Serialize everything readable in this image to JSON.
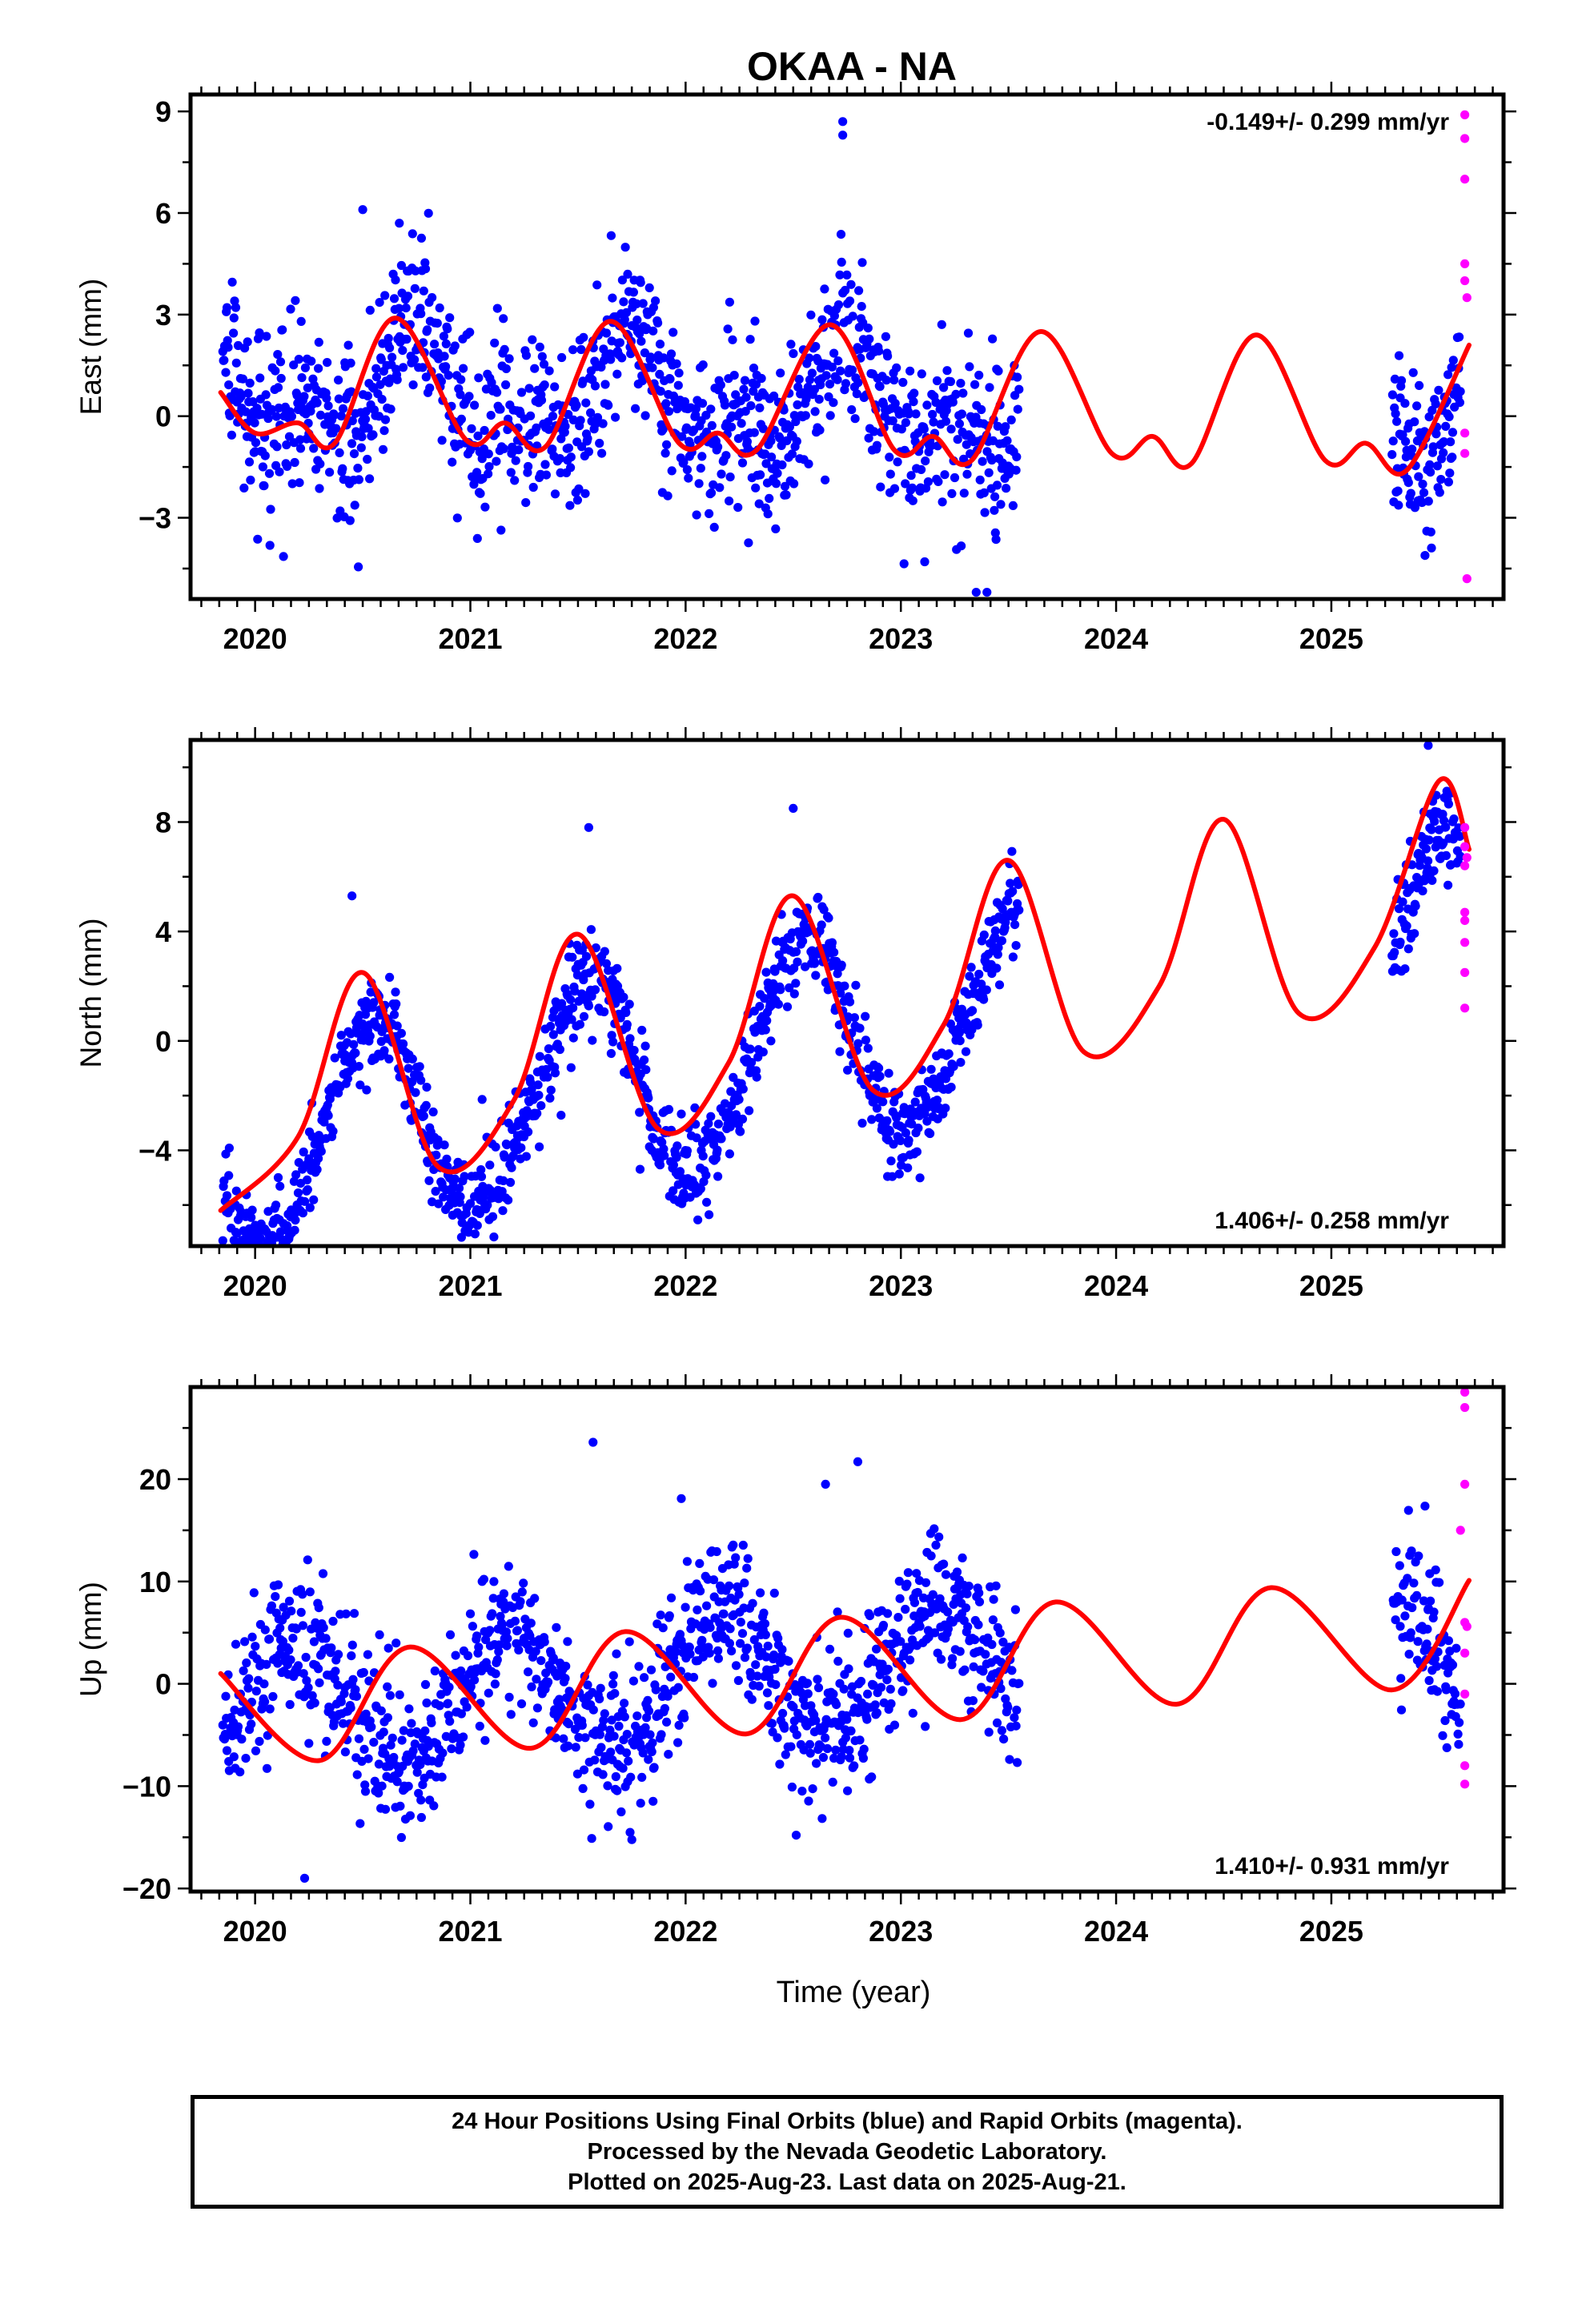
{
  "title": "OKAA - NA",
  "xlabel": "Time (year)",
  "caption": {
    "line1": "24 Hour Positions Using Final Orbits (blue) and Rapid Orbits (magenta).",
    "line2": "Processed by the Nevada Geodetic Laboratory.",
    "line3": "Plotted on 2025-Aug-23. Last data on 2025-Aug-21."
  },
  "colors": {
    "final": "#0000ff",
    "rapid": "#ff00ff",
    "model": "#ff0000",
    "frame": "#000000"
  },
  "chart_data": [
    {
      "type": "scatter",
      "ylabel": "East (mm)",
      "rate": "-0.149+/- 0.299 mm/yr",
      "rate_position": "top-right",
      "xlim": [
        2019.7,
        2025.8
      ],
      "ylim": [
        -5.4,
        9.5
      ],
      "xticks": [
        2020,
        2021,
        2022,
        2023,
        2024,
        2025
      ],
      "yticks": [
        -3,
        0,
        3,
        6,
        9
      ],
      "yticklabels": [
        "−3",
        "0",
        "3",
        "6",
        "9"
      ],
      "trend": {
        "intercept": 0.8,
        "slope": -0.149
      },
      "seasonal": {
        "annual_cos": 0.0,
        "annual_sin": -1.3,
        "semi_cos": -0.9,
        "semi_sin": 0.2
      },
      "noise_sd": 1.2,
      "model_segments": [
        [
          2019.85,
          2023.53
        ],
        [
          2023.53,
          2025.35
        ],
        [
          2025.35,
          2025.64
        ]
      ],
      "final_gaps": [
        [
          2023.55,
          2025.28
        ]
      ],
      "model_points": [
        [
          2019.84,
          0.7
        ],
        [
          2020.0,
          -0.5
        ],
        [
          2020.2,
          -0.2
        ],
        [
          2020.37,
          -0.8
        ],
        [
          2020.65,
          2.9
        ],
        [
          2020.98,
          -0.7
        ],
        [
          2021.16,
          -0.2
        ],
        [
          2021.35,
          -0.9
        ],
        [
          2021.65,
          2.8
        ],
        [
          2021.97,
          -0.8
        ],
        [
          2022.15,
          -0.5
        ],
        [
          2022.33,
          -1.0
        ],
        [
          2022.67,
          2.7
        ],
        [
          2022.97,
          -1.0
        ],
        [
          2023.15,
          -0.6
        ],
        [
          2023.33,
          -1.3
        ],
        [
          2023.65,
          2.5
        ],
        [
          2023.98,
          -1.1
        ],
        [
          2024.17,
          -0.6
        ],
        [
          2024.35,
          -1.4
        ],
        [
          2024.65,
          2.4
        ],
        [
          2024.97,
          -1.3
        ],
        [
          2025.16,
          -0.8
        ],
        [
          2025.35,
          -1.6
        ],
        [
          2025.64,
          2.1
        ]
      ],
      "rapid_points": [
        [
          2025.62,
          8.9
        ],
        [
          2025.62,
          8.2
        ],
        [
          2025.62,
          7.0
        ],
        [
          2025.62,
          4.5
        ],
        [
          2025.62,
          4.0
        ],
        [
          2025.63,
          3.5
        ],
        [
          2025.62,
          -0.5
        ],
        [
          2025.62,
          -1.1
        ],
        [
          2025.63,
          -4.8
        ]
      ],
      "outliers": [
        [
          2020.5,
          6.1
        ],
        [
          2020.67,
          5.7
        ],
        [
          2022.73,
          8.7
        ],
        [
          2022.73,
          8.3
        ],
        [
          2023.35,
          -5.2
        ],
        [
          2023.4,
          -5.2
        ]
      ]
    },
    {
      "type": "scatter",
      "ylabel": "North (mm)",
      "rate": "1.406+/- 0.258 mm/yr",
      "rate_position": "bottom-right",
      "xlim": [
        2019.7,
        2025.8
      ],
      "ylim": [
        -7.5,
        11.0
      ],
      "xticks": [
        2020,
        2021,
        2022,
        2023,
        2024,
        2025
      ],
      "yticks": [
        -4,
        0,
        4,
        8
      ],
      "yticklabels": [
        "−4",
        "0",
        "4",
        "8"
      ],
      "trend": {
        "intercept": -4.3,
        "slope": 1.406
      },
      "seasonal": {
        "annual_cos": -3.7,
        "annual_sin": -1.0,
        "semi_cos": 0.0,
        "semi_sin": 0.3
      },
      "noise_sd": 0.85,
      "model_segments": [
        [
          2019.85,
          2023.53
        ],
        [
          2023.53,
          2025.35
        ],
        [
          2025.35,
          2025.64
        ]
      ],
      "final_gaps": [
        [
          2023.55,
          2025.28
        ]
      ],
      "model_points": [
        [
          2019.84,
          -6.2
        ],
        [
          2020.2,
          -3.5
        ],
        [
          2020.5,
          2.5
        ],
        [
          2020.85,
          -4.6
        ],
        [
          2021.2,
          -2.2
        ],
        [
          2021.5,
          3.9
        ],
        [
          2021.87,
          -3.2
        ],
        [
          2022.2,
          -0.8
        ],
        [
          2022.5,
          5.3
        ],
        [
          2022.87,
          -1.8
        ],
        [
          2023.2,
          0.6
        ],
        [
          2023.5,
          6.6
        ],
        [
          2023.85,
          -0.4
        ],
        [
          2024.2,
          2.0
        ],
        [
          2024.5,
          8.1
        ],
        [
          2024.85,
          1.0
        ],
        [
          2025.2,
          3.4
        ],
        [
          2025.5,
          9.5
        ],
        [
          2025.64,
          7.0
        ]
      ],
      "rapid_points": [
        [
          2025.62,
          7.8
        ],
        [
          2025.62,
          7.1
        ],
        [
          2025.62,
          6.4
        ],
        [
          2025.63,
          6.7
        ],
        [
          2025.62,
          4.7
        ],
        [
          2025.62,
          4.4
        ],
        [
          2025.62,
          3.6
        ],
        [
          2025.62,
          2.5
        ],
        [
          2025.62,
          1.2
        ]
      ],
      "outliers": [
        [
          2020.45,
          5.3
        ],
        [
          2021.55,
          7.8
        ],
        [
          2022.5,
          8.5
        ],
        [
          2025.45,
          10.8
        ],
        [
          2019.85,
          -7.3
        ]
      ]
    },
    {
      "type": "scatter",
      "ylabel": "Up (mm)",
      "rate": "1.410+/- 0.931 mm/yr",
      "rate_position": "bottom-right",
      "xlim": [
        2019.7,
        2025.8
      ],
      "ylim": [
        -20.3,
        29.0
      ],
      "xticks": [
        2020,
        2021,
        2022,
        2023,
        2024,
        2025
      ],
      "yticks": [
        -20,
        -10,
        0,
        10,
        20
      ],
      "yticklabels": [
        "−20",
        "−10",
        "0",
        "10",
        "20"
      ],
      "trend": {
        "intercept": -3.0,
        "slope": 1.41
      },
      "seasonal": {
        "annual_cos": 2.8,
        "annual_sin": 5.6,
        "semi_cos": 0.0,
        "semi_sin": 0.0
      },
      "noise_sd": 3.8,
      "model_segments": [
        [
          2019.85,
          2023.53
        ],
        [
          2023.53,
          2025.35
        ],
        [
          2025.35,
          2025.64
        ]
      ],
      "final_gaps": [
        [
          2023.55,
          2025.28
        ]
      ],
      "model_points": [
        [
          2019.84,
          1.0
        ],
        [
          2020.3,
          -7.5
        ],
        [
          2020.72,
          3.6
        ],
        [
          2021.28,
          -6.3
        ],
        [
          2021.72,
          5.1
        ],
        [
          2022.28,
          -4.9
        ],
        [
          2022.72,
          6.5
        ],
        [
          2023.28,
          -3.5
        ],
        [
          2023.72,
          8.0
        ],
        [
          2024.28,
          -2.0
        ],
        [
          2024.72,
          9.4
        ],
        [
          2025.28,
          -0.6
        ],
        [
          2025.64,
          10.1
        ]
      ],
      "rapid_points": [
        [
          2025.62,
          28.5
        ],
        [
          2025.62,
          27.0
        ],
        [
          2025.62,
          19.5
        ],
        [
          2025.6,
          15.0
        ],
        [
          2025.62,
          6.0
        ],
        [
          2025.63,
          5.6
        ],
        [
          2025.62,
          3.0
        ],
        [
          2025.62,
          -1.0
        ],
        [
          2025.62,
          -8.0
        ],
        [
          2025.62,
          -9.8
        ]
      ],
      "outliers": [
        [
          2021.57,
          23.6
        ],
        [
          2022.8,
          21.7
        ],
        [
          2020.23,
          -19.0
        ],
        [
          2022.65,
          19.5
        ],
        [
          2021.98,
          18.1
        ]
      ]
    }
  ]
}
